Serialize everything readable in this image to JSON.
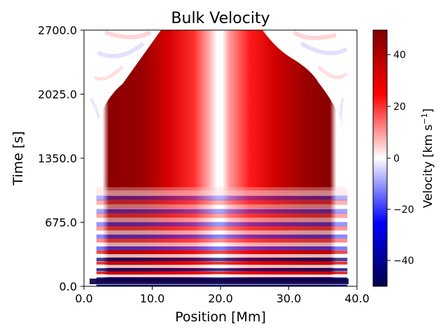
{
  "chart_data": {
    "type": "heatmap",
    "title": "Bulk Velocity",
    "xlabel": "Position [Mm]",
    "ylabel": "Time [s]",
    "xlim": [
      0.0,
      40.0
    ],
    "ylim": [
      0.0,
      2700.0
    ],
    "x_ticks": [
      "0.0",
      "10.0",
      "20.0",
      "30.0",
      "40.0"
    ],
    "x_tick_values": [
      0,
      10,
      20,
      30,
      40
    ],
    "y_ticks": [
      "0.0",
      "675.0",
      "1350.0",
      "2025.0",
      "2700.0"
    ],
    "y_tick_values": [
      0,
      675,
      1350,
      2025,
      2700
    ],
    "colorbar": {
      "label": "Velocity [km s",
      "label_sup": "−1",
      "label_end": "]",
      "colormap": "seismic",
      "range": [
        -50,
        50
      ],
      "ticks": [
        "40",
        "20",
        "0",
        "−20",
        "−40"
      ],
      "tick_values": [
        40,
        20,
        0,
        -20,
        -40
      ],
      "colors": {
        "min": "#00004c",
        "low": "#0000ff",
        "mid": "#ffffff",
        "high": "#ff0000",
        "max": "#7f0000"
      }
    },
    "structure": {
      "loop_footpoints_mm": [
        1.0,
        39.0
      ],
      "apex_mm": 20.0,
      "flow_onset_s": 150,
      "steady_flow_start_s": 1000,
      "steady_velocity_left_km_s": 45,
      "steady_velocity_right_km_s": 40,
      "oscillation_band_s": [
        0,
        1000
      ]
    }
  }
}
